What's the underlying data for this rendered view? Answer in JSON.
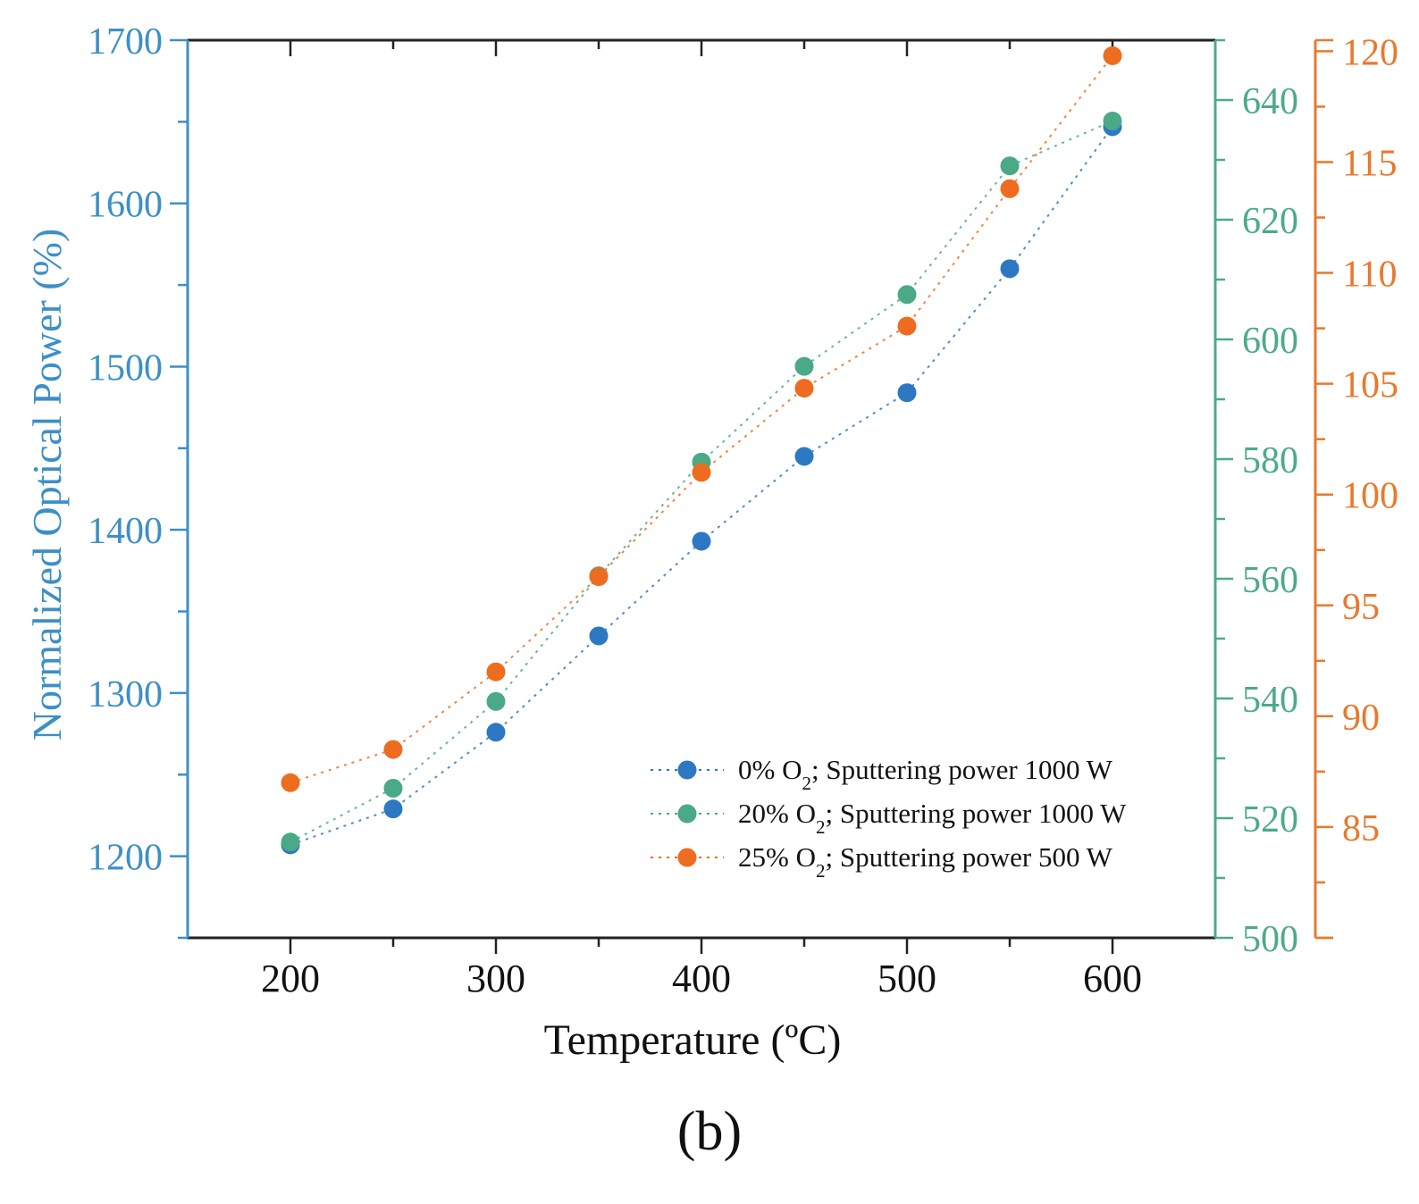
{
  "chart_data": {
    "type": "scatter",
    "xlabel": "Temperature (ºC)",
    "ylabel": "Normalized Optical Power (%)",
    "x": [
      200,
      250,
      300,
      350,
      400,
      450,
      500,
      550,
      600
    ],
    "xlim": [
      150,
      650
    ],
    "xticks": [
      "200",
      "300",
      "400",
      "500",
      "600"
    ],
    "axes": {
      "left": {
        "lim": [
          1150,
          1700
        ],
        "ticks": [
          "1200",
          "1300",
          "1400",
          "1500",
          "1600",
          "1700"
        ],
        "color": "#3d8fc7"
      },
      "right1": {
        "lim": [
          500,
          650
        ],
        "ticks": [
          "500",
          "520",
          "540",
          "560",
          "580",
          "600",
          "620",
          "640"
        ],
        "color": "#4caa8a"
      },
      "right2": {
        "lim": [
          80,
          120.5
        ],
        "ticks": [
          "85",
          "90",
          "95",
          "100",
          "105",
          "110",
          "115",
          "120"
        ],
        "color": "#e8792c"
      }
    },
    "series": [
      {
        "name": "0%   O",
        "sub": "2",
        "rest": "; Sputtering power 1000 W",
        "axis": "left",
        "color": "#2d78c2",
        "values": [
          1207,
          1229,
          1276,
          1335,
          1393,
          1445,
          1484,
          1560,
          1647
        ]
      },
      {
        "name": "20% O",
        "sub": "2",
        "rest": "; Sputtering power 1000 W",
        "axis": "right1",
        "color": "#4aa987",
        "values": [
          516,
          525,
          539.5,
          560.5,
          579.5,
          595.5,
          607.5,
          629,
          636.5
        ]
      },
      {
        "name": "25% O",
        "sub": "2",
        "rest": "; Sputtering power   500 W",
        "axis": "right2",
        "color": "#ee6c1f",
        "values": [
          87,
          88.5,
          92,
          96.3,
          101,
          104.8,
          107.6,
          113.8,
          119.8
        ]
      }
    ],
    "legend_position": "bottom-right",
    "grid": false
  },
  "panel_label": "(b)"
}
